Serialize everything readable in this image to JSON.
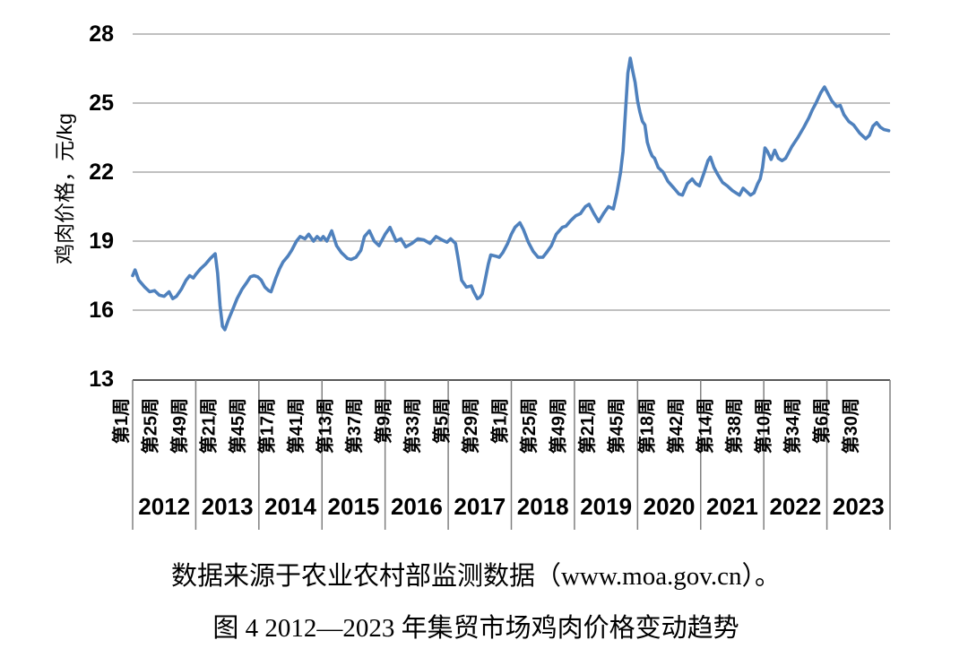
{
  "captions": {
    "source": "数据来源于农业农村部监测数据（www.moa.gov.cn）。",
    "figure_title": "图 4 2012—2023 年集贸市场鸡肉价格变动趋势"
  },
  "chart_data": {
    "type": "line",
    "title": "图 4 2012—2023 年集贸市场鸡肉价格变动趋势",
    "source": "数据来源于农业农村部监测数据（www.moa.gov.cn）。",
    "ylabel": "鸡肉价格，元/kg",
    "ylim": [
      13,
      28
    ],
    "yticks": [
      28,
      25,
      22,
      19,
      16,
      13
    ],
    "x_unit": "weeks since 2012 week 1 (weekly farmers' market chicken price)",
    "grid": "horizontal only",
    "legend": "none",
    "week_tick_labels": [
      {
        "i": 0,
        "label": "第1周"
      },
      {
        "i": 24,
        "label": "第25周"
      },
      {
        "i": 48,
        "label": "第49周"
      },
      {
        "i": 72,
        "label": "第21周"
      },
      {
        "i": 96,
        "label": "第45周"
      },
      {
        "i": 120,
        "label": "第17周"
      },
      {
        "i": 144,
        "label": "第41周"
      },
      {
        "i": 168,
        "label": "第13周"
      },
      {
        "i": 192,
        "label": "第37周"
      },
      {
        "i": 216,
        "label": "第9周"
      },
      {
        "i": 240,
        "label": "第33周"
      },
      {
        "i": 264,
        "label": "第5周"
      },
      {
        "i": 288,
        "label": "第29周"
      },
      {
        "i": 312,
        "label": "第1周"
      },
      {
        "i": 336,
        "label": "第25周"
      },
      {
        "i": 360,
        "label": "第49周"
      },
      {
        "i": 384,
        "label": "第21周"
      },
      {
        "i": 408,
        "label": "第45周"
      },
      {
        "i": 433,
        "label": "第18周"
      },
      {
        "i": 457,
        "label": "第42周"
      },
      {
        "i": 481,
        "label": "第14周"
      },
      {
        "i": 505,
        "label": "第38周"
      },
      {
        "i": 529,
        "label": "第10周"
      },
      {
        "i": 553,
        "label": "第34周"
      },
      {
        "i": 577,
        "label": "第6周"
      },
      {
        "i": 601,
        "label": "第30周"
      }
    ],
    "years": [
      "2012",
      "2013",
      "2014",
      "2015",
      "2016",
      "2017",
      "2018",
      "2019",
      "2020",
      "2021",
      "2022",
      "2023"
    ],
    "weeks_per_year": 52,
    "series": [
      {
        "name": "集贸市场鸡肉价格",
        "color": "#4f81bd",
        "points": [
          [
            0,
            17.5
          ],
          [
            2,
            17.75
          ],
          [
            5,
            17.3
          ],
          [
            10,
            17.0
          ],
          [
            14,
            16.8
          ],
          [
            18,
            16.85
          ],
          [
            22,
            16.65
          ],
          [
            26,
            16.6
          ],
          [
            30,
            16.8
          ],
          [
            33,
            16.5
          ],
          [
            36,
            16.6
          ],
          [
            40,
            16.9
          ],
          [
            44,
            17.3
          ],
          [
            47,
            17.5
          ],
          [
            50,
            17.4
          ],
          [
            52,
            17.55
          ],
          [
            56,
            17.8
          ],
          [
            60,
            18.0
          ],
          [
            64,
            18.25
          ],
          [
            68,
            18.45
          ],
          [
            70,
            17.6
          ],
          [
            72,
            16.2
          ],
          [
            74,
            15.3
          ],
          [
            76,
            15.15
          ],
          [
            79,
            15.6
          ],
          [
            83,
            16.1
          ],
          [
            86,
            16.5
          ],
          [
            90,
            16.9
          ],
          [
            94,
            17.2
          ],
          [
            97,
            17.45
          ],
          [
            100,
            17.5
          ],
          [
            103,
            17.45
          ],
          [
            106,
            17.3
          ],
          [
            109,
            17.0
          ],
          [
            112,
            16.85
          ],
          [
            114,
            16.8
          ],
          [
            118,
            17.4
          ],
          [
            121,
            17.8
          ],
          [
            124,
            18.1
          ],
          [
            128,
            18.35
          ],
          [
            131,
            18.6
          ],
          [
            135,
            19.0
          ],
          [
            138,
            19.2
          ],
          [
            142,
            19.1
          ],
          [
            145,
            19.3
          ],
          [
            149,
            19.0
          ],
          [
            152,
            19.2
          ],
          [
            155,
            19.05
          ],
          [
            157,
            19.2
          ],
          [
            160,
            19.0
          ],
          [
            164,
            19.45
          ],
          [
            168,
            18.8
          ],
          [
            172,
            18.5
          ],
          [
            177,
            18.25
          ],
          [
            180,
            18.2
          ],
          [
            184,
            18.3
          ],
          [
            188,
            18.6
          ],
          [
            191,
            19.2
          ],
          [
            195,
            19.45
          ],
          [
            199,
            19.0
          ],
          [
            203,
            18.8
          ],
          [
            208,
            19.3
          ],
          [
            212,
            19.6
          ],
          [
            217,
            19.0
          ],
          [
            221,
            19.1
          ],
          [
            225,
            18.75
          ],
          [
            230,
            18.9
          ],
          [
            235,
            19.1
          ],
          [
            240,
            19.05
          ],
          [
            245,
            18.9
          ],
          [
            250,
            19.2
          ],
          [
            255,
            19.05
          ],
          [
            259,
            18.95
          ],
          [
            262,
            19.1
          ],
          [
            266,
            18.9
          ],
          [
            268,
            18.3
          ],
          [
            271,
            17.3
          ],
          [
            275,
            17.0
          ],
          [
            279,
            17.05
          ],
          [
            281,
            16.8
          ],
          [
            284,
            16.5
          ],
          [
            286,
            16.55
          ],
          [
            288,
            16.7
          ],
          [
            290,
            17.2
          ],
          [
            293,
            18.0
          ],
          [
            295,
            18.4
          ],
          [
            299,
            18.35
          ],
          [
            302,
            18.3
          ],
          [
            305,
            18.5
          ],
          [
            309,
            18.9
          ],
          [
            312,
            19.3
          ],
          [
            315,
            19.6
          ],
          [
            319,
            19.8
          ],
          [
            322,
            19.5
          ],
          [
            326,
            18.95
          ],
          [
            330,
            18.55
          ],
          [
            334,
            18.3
          ],
          [
            338,
            18.3
          ],
          [
            341,
            18.5
          ],
          [
            345,
            18.8
          ],
          [
            349,
            19.3
          ],
          [
            354,
            19.6
          ],
          [
            357,
            19.65
          ],
          [
            361,
            19.9
          ],
          [
            365,
            20.1
          ],
          [
            369,
            20.2
          ],
          [
            373,
            20.5
          ],
          [
            376,
            20.6
          ],
          [
            380,
            20.2
          ],
          [
            384,
            19.85
          ],
          [
            388,
            20.2
          ],
          [
            392,
            20.5
          ],
          [
            396,
            20.4
          ],
          [
            399,
            21.1
          ],
          [
            402,
            22.0
          ],
          [
            404,
            22.9
          ],
          [
            406,
            24.6
          ],
          [
            408,
            26.3
          ],
          [
            410,
            26.95
          ],
          [
            412,
            26.4
          ],
          [
            414,
            25.9
          ],
          [
            416,
            25.1
          ],
          [
            418,
            24.6
          ],
          [
            420,
            24.2
          ],
          [
            422,
            24.05
          ],
          [
            424,
            23.3
          ],
          [
            426,
            22.95
          ],
          [
            428,
            22.7
          ],
          [
            430,
            22.6
          ],
          [
            433,
            22.2
          ],
          [
            437,
            22.0
          ],
          [
            441,
            21.6
          ],
          [
            446,
            21.3
          ],
          [
            450,
            21.05
          ],
          [
            453,
            21.0
          ],
          [
            457,
            21.5
          ],
          [
            461,
            21.7
          ],
          [
            464,
            21.5
          ],
          [
            467,
            21.4
          ],
          [
            471,
            22.0
          ],
          [
            474,
            22.5
          ],
          [
            476,
            22.65
          ],
          [
            479,
            22.2
          ],
          [
            482,
            21.9
          ],
          [
            486,
            21.55
          ],
          [
            490,
            21.4
          ],
          [
            494,
            21.2
          ],
          [
            497,
            21.1
          ],
          [
            500,
            21.0
          ],
          [
            503,
            21.3
          ],
          [
            506,
            21.15
          ],
          [
            509,
            21.0
          ],
          [
            512,
            21.1
          ],
          [
            515,
            21.5
          ],
          [
            517,
            21.7
          ],
          [
            519,
            22.2
          ],
          [
            521,
            23.05
          ],
          [
            523,
            22.9
          ],
          [
            526,
            22.55
          ],
          [
            529,
            22.95
          ],
          [
            532,
            22.6
          ],
          [
            535,
            22.5
          ],
          [
            538,
            22.6
          ],
          [
            543,
            23.1
          ],
          [
            548,
            23.5
          ],
          [
            553,
            23.95
          ],
          [
            557,
            24.35
          ],
          [
            560,
            24.7
          ],
          [
            563,
            25.0
          ],
          [
            567,
            25.45
          ],
          [
            570,
            25.7
          ],
          [
            574,
            25.3
          ],
          [
            576,
            25.1
          ],
          [
            580,
            24.85
          ],
          [
            583,
            24.9
          ],
          [
            586,
            24.5
          ],
          [
            590,
            24.2
          ],
          [
            594,
            24.05
          ],
          [
            599,
            23.7
          ],
          [
            604,
            23.45
          ],
          [
            607,
            23.6
          ],
          [
            610,
            24.0
          ],
          [
            613,
            24.15
          ],
          [
            616,
            23.95
          ],
          [
            619,
            23.85
          ],
          [
            623,
            23.8
          ]
        ]
      }
    ],
    "colors": {
      "line": "#4f81bd",
      "gridline": "#9a9a9a",
      "axis_line": "#595959",
      "table_border": "#808080",
      "text": "#000000"
    }
  }
}
